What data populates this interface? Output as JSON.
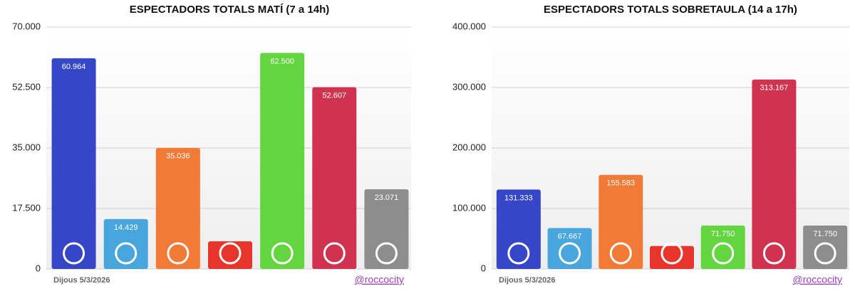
{
  "chart_data": [
    {
      "type": "bar",
      "title": "ESPECTADORS TOTALS MATÍ (7 a 14h)",
      "categories": [
        null,
        null,
        null,
        null,
        null,
        null,
        null
      ],
      "values": [
        60964,
        14429,
        35036,
        8000,
        62500,
        52607,
        23071
      ],
      "value_labels": [
        "60.964",
        "14.429",
        "35.036",
        null,
        "62.500",
        "52.607",
        "23.071"
      ],
      "colors": [
        "#3546c6",
        "#48a6dd",
        "#f07a36",
        "#e8352b",
        "#63d53f",
        "#cf3350",
        "#8d8d8d"
      ],
      "ylim": [
        0,
        70000
      ],
      "yticks": [
        0,
        {
          "value": 17500,
          "label": "17.500"
        },
        {
          "value": 35000,
          "label": "35.000"
        },
        {
          "value": 52500,
          "label": "52.500"
        },
        {
          "value": 70000,
          "label": "70.000"
        }
      ],
      "grid": true,
      "footer_left": "Dijous 5/3/2026",
      "footer_right": "@roccocity"
    },
    {
      "type": "bar",
      "title": "ESPECTADORS TOTALS SOBRETAULA (14 a 17h)",
      "categories": [
        null,
        null,
        null,
        null,
        null,
        null,
        null
      ],
      "values": [
        131333,
        67667,
        155583,
        38000,
        71750,
        313167,
        71750
      ],
      "value_labels": [
        "131.333",
        "67.667",
        "155.583",
        null,
        "71.750",
        "313.167",
        "71.750"
      ],
      "colors": [
        "#3546c6",
        "#48a6dd",
        "#f07a36",
        "#e8352b",
        "#63d53f",
        "#cf3350",
        "#8d8d8d"
      ],
      "ylim": [
        0,
        400000
      ],
      "yticks": [
        0,
        {
          "value": 100000,
          "label": "100.000"
        },
        {
          "value": 200000,
          "label": "200.000"
        },
        {
          "value": 300000,
          "label": "300.000"
        },
        {
          "value": 400000,
          "label": "400.000"
        }
      ],
      "grid": true,
      "footer_left": "Dijous 5/3/2026",
      "footer_right": "@roccocity"
    }
  ]
}
